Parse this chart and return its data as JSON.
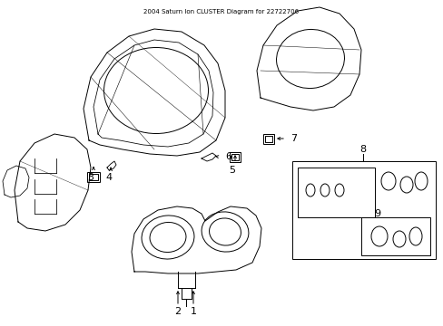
{
  "title": "2004 Saturn Ion CLUSTER Diagram for 22722706",
  "bg": "#ffffff",
  "lc": "#000000",
  "lw": 0.7,
  "figsize": [
    4.89,
    3.6
  ],
  "dpi": 100
}
